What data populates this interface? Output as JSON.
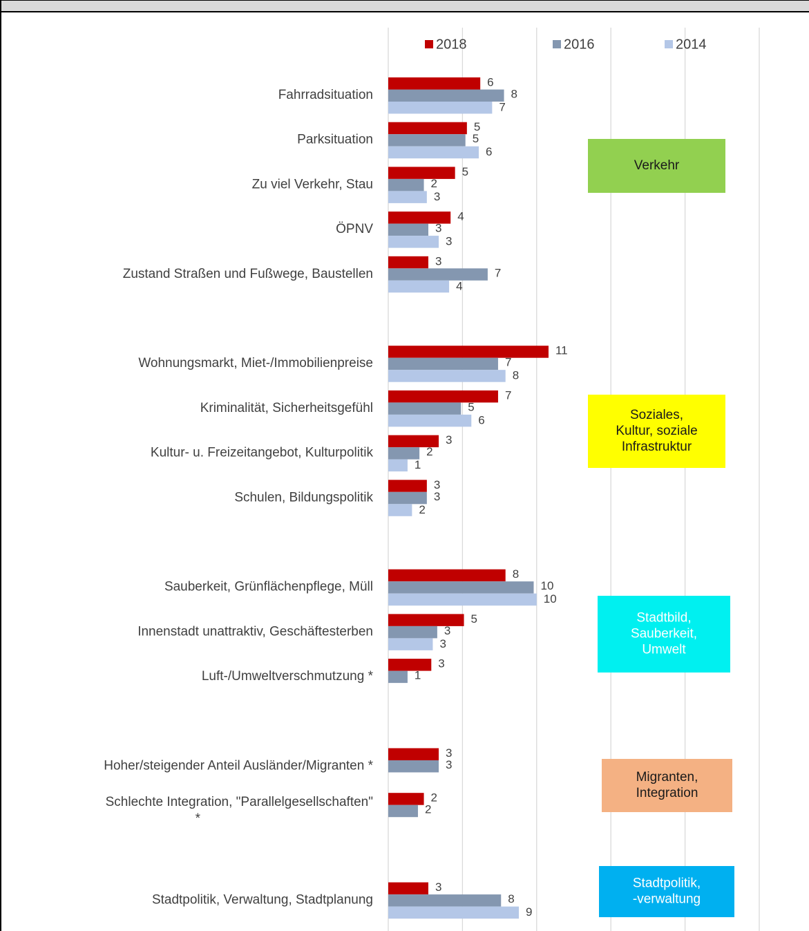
{
  "chart_data": {
    "type": "hbar",
    "categories": [
      "Fahrradsituation",
      "Parksituation",
      "Zu viel Verkehr, Stau",
      "ÖPNV",
      "Zustand Straßen und Fußwege, Baustellen",
      null,
      "Wohnungsmarkt, Miet-/Immobilienpreise",
      "Kriminalität, Sicherheitsgefühl",
      "Kultur- u. Freizeitangebot, Kulturpolitik",
      "Schulen, Bildungspolitik",
      null,
      "Sauberkeit, Grünflächenpflege, Müll",
      "Innenstadt unattraktiv, Geschäftesterben",
      "Luft-/Umweltverschmutzung *",
      null,
      "Hoher/steigender Anteil Ausländer/Migranten *",
      "Schlechte Integration, \"Parallelgesellschaften\" *",
      null,
      "Stadtpolitik, Verwaltung, Stadtplanung"
    ],
    "series": [
      {
        "name": "2018",
        "color": "#c00000",
        "values": [
          6.2,
          5.3,
          4.5,
          4.2,
          2.7,
          null,
          10.8,
          7.4,
          3.4,
          2.6,
          null,
          7.9,
          5.1,
          2.9,
          null,
          3.4,
          2.4,
          null,
          2.7
        ],
        "value_labels": [
          "6",
          "5",
          "5",
          "4",
          "3",
          null,
          "11",
          "7",
          "3",
          "3",
          null,
          "8",
          "5",
          "3",
          null,
          "3",
          "2",
          null,
          "3"
        ]
      },
      {
        "name": "2016",
        "color": "#8497b0",
        "values": [
          7.8,
          5.2,
          2.4,
          2.7,
          6.7,
          null,
          7.4,
          4.9,
          2.1,
          2.6,
          null,
          9.8,
          3.3,
          1.3,
          null,
          3.4,
          2.0,
          null,
          7.6
        ],
        "value_labels": [
          "8",
          "5",
          "2",
          "3",
          "7",
          null,
          "7",
          "5",
          "2",
          "3",
          null,
          "10",
          "3",
          "1",
          null,
          "3",
          "2",
          null,
          "8"
        ]
      },
      {
        "name": "2014",
        "color": "#b4c7e7",
        "values": [
          7.0,
          6.1,
          2.6,
          3.4,
          4.1,
          null,
          7.9,
          5.6,
          1.3,
          1.6,
          null,
          10.0,
          3.0,
          null,
          null,
          null,
          null,
          null,
          8.8
        ],
        "value_labels": [
          "7",
          "6",
          "3",
          "3",
          "4",
          null,
          "8",
          "6",
          "1",
          "2",
          null,
          "10",
          "3",
          null,
          null,
          null,
          null,
          null,
          "9"
        ]
      }
    ],
    "xlim": [
      0,
      25
    ],
    "xticks": [
      0,
      5,
      10,
      15,
      20,
      25
    ],
    "grid": true,
    "legend": "top",
    "annotations": [
      {
        "lines": [
          "Verkehr"
        ],
        "color": "#92d050",
        "text_color": "#1a1a1a"
      },
      {
        "lines": [
          "Soziales,",
          "Kultur, soziale",
          "Infrastruktur"
        ],
        "color": "#ffff00",
        "text_color": "#1a1a1a"
      },
      {
        "lines": [
          "Stadtbild,",
          "Sauberkeit,",
          "Umwelt"
        ],
        "color": "#00f0f0",
        "text_color": "#ffffff"
      },
      {
        "lines": [
          "Migranten,",
          "Integration"
        ],
        "color": "#f4b183",
        "text_color": "#1a1a1a"
      },
      {
        "lines": [
          "Stadtpolitik,",
          "-verwaltung"
        ],
        "color": "#00b0f0",
        "text_color": "#ffffff"
      }
    ]
  }
}
